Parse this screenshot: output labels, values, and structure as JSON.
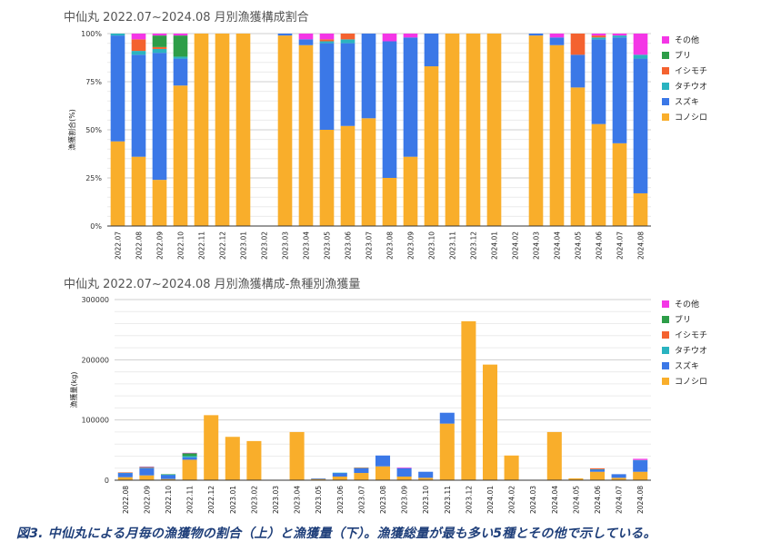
{
  "figure_caption": "図3.  中仙丸による月毎の漁獲物の割合（上）と漁獲量（下）。漁獲総量が最も多い5種とその他で示している。",
  "species_colors": {
    "コノシロ": "#f9ae2b",
    "スズキ": "#3b78e7",
    "タチウオ": "#2ab3c0",
    "イシモチ": "#f4622f",
    "ブリ": "#2d9d48",
    "その他": "#f436e6"
  },
  "legend": [
    "その他",
    "ブリ",
    "イシモチ",
    "タチウオ",
    "スズキ",
    "コノシロ"
  ],
  "chart_data": [
    {
      "type": "bar",
      "stacked": true,
      "title": "中仙丸 2022.07~2024.08 月別漁獲構成割合",
      "xlabel": "",
      "ylabel": "漁獲割合(%)",
      "ylim": [
        0,
        100
      ],
      "yticks": [
        "0%",
        "25%",
        "50%",
        "75%",
        "100%"
      ],
      "grid": true,
      "legend_position": "right",
      "categories": [
        "2022.07",
        "2022.08",
        "2022.09",
        "2022.10",
        "2022.11",
        "2022.12",
        "2023.01",
        "2023.02",
        "2023.03",
        "2023.04",
        "2023.05",
        "2023.06",
        "2023.07",
        "2023.08",
        "2023.09",
        "2023.10",
        "2023.11",
        "2023.12",
        "2024.01",
        "2024.02",
        "2024.03",
        "2024.04",
        "2024.05",
        "2024.06",
        "2024.07",
        "2024.08"
      ],
      "series": [
        {
          "name": "コノシロ",
          "values": [
            44,
            36,
            24,
            73,
            100,
            100,
            100,
            0,
            99,
            94,
            50,
            52,
            56,
            25,
            36,
            83,
            100,
            100,
            100,
            0,
            99,
            94,
            72,
            53,
            43,
            17
          ]
        },
        {
          "name": "スズキ",
          "values": [
            55,
            53,
            66,
            14,
            0,
            0,
            0,
            0,
            1,
            3,
            45,
            43,
            44,
            71,
            62,
            17,
            0,
            0,
            0,
            0,
            1,
            4,
            17,
            44,
            55,
            70
          ]
        },
        {
          "name": "タチウオ",
          "values": [
            1,
            2,
            2,
            1,
            0,
            0,
            0,
            0,
            0,
            0,
            1,
            2,
            0,
            0,
            0,
            0,
            0,
            0,
            0,
            0,
            0,
            0,
            0,
            1,
            1,
            2
          ]
        },
        {
          "name": "イシモチ",
          "values": [
            0,
            6,
            1,
            0,
            0,
            0,
            0,
            0,
            0,
            0,
            1,
            3,
            0,
            0,
            0,
            0,
            0,
            0,
            0,
            0,
            0,
            0,
            11,
            1,
            0,
            0
          ]
        },
        {
          "name": "ブリ",
          "values": [
            0,
            0,
            6,
            11,
            0,
            0,
            0,
            0,
            0,
            0,
            0,
            0,
            0,
            0,
            0,
            0,
            0,
            0,
            0,
            0,
            0,
            0,
            0,
            0,
            0,
            0
          ]
        },
        {
          "name": "その他",
          "values": [
            0,
            3,
            1,
            1,
            0,
            0,
            0,
            0,
            0,
            3,
            3,
            0,
            0,
            4,
            2,
            0,
            0,
            0,
            0,
            0,
            0,
            2,
            0,
            1,
            1,
            11
          ]
        }
      ]
    },
    {
      "type": "bar",
      "stacked": true,
      "title": "中仙丸 2022.07~2024.08 月別漁獲構成-魚種別漁獲量",
      "xlabel": "",
      "ylabel": "漁獲量(kg)",
      "ylim": [
        0,
        300000
      ],
      "yticks": [
        "0",
        "100000",
        "200000",
        "300000"
      ],
      "grid": true,
      "legend_position": "right",
      "categories": [
        "2022.08",
        "2022.09",
        "2022.10",
        "2022.11",
        "2022.12",
        "2023.01",
        "2023.02",
        "2023.03",
        "2023.04",
        "2023.05",
        "2023.06",
        "2023.07",
        "2023.08",
        "2023.09",
        "2023.10",
        "2023.11",
        "2023.12",
        "2024.01",
        "2024.02",
        "2024.03",
        "2024.04",
        "2024.05",
        "2024.06",
        "2024.07",
        "2024.08"
      ],
      "series": [
        {
          "name": "コノシロ",
          "values": [
            5000,
            8000,
            2000,
            34000,
            108000,
            72000,
            65000,
            0,
            80000,
            2000,
            6000,
            12000,
            23000,
            6000,
            4000,
            94000,
            264000,
            192000,
            41000,
            0,
            80000,
            3000,
            14000,
            4000,
            14000
          ]
        },
        {
          "name": "スズキ",
          "values": [
            7000,
            12000,
            7000,
            4000,
            0,
            0,
            0,
            0,
            0,
            1000,
            6000,
            8000,
            18000,
            14000,
            10000,
            18000,
            0,
            0,
            0,
            0,
            0,
            0,
            4000,
            6000,
            19000
          ]
        },
        {
          "name": "タチウオ",
          "values": [
            500,
            500,
            200,
            2000,
            0,
            0,
            0,
            0,
            0,
            0,
            500,
            500,
            0,
            0,
            0,
            0,
            0,
            0,
            0,
            0,
            0,
            0,
            200,
            0,
            500
          ]
        },
        {
          "name": "イシモチ",
          "values": [
            500,
            1000,
            0,
            0,
            0,
            0,
            0,
            0,
            0,
            0,
            0,
            500,
            0,
            0,
            0,
            0,
            0,
            0,
            0,
            0,
            0,
            0,
            1500,
            0,
            0
          ]
        },
        {
          "name": "ブリ",
          "values": [
            0,
            500,
            800,
            5000,
            0,
            0,
            0,
            0,
            0,
            0,
            0,
            0,
            0,
            0,
            0,
            0,
            0,
            0,
            0,
            0,
            0,
            0,
            0,
            0,
            0
          ]
        },
        {
          "name": "その他",
          "values": [
            0,
            500,
            0,
            500,
            0,
            0,
            0,
            0,
            0,
            0,
            0,
            0,
            0,
            1000,
            0,
            0,
            0,
            0,
            0,
            0,
            0,
            0,
            0,
            0,
            2000
          ]
        }
      ]
    }
  ]
}
